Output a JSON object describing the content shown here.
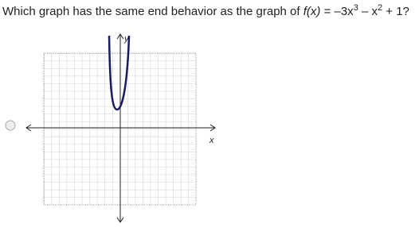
{
  "question": {
    "prefix": "Which graph has the same end behavior as the graph of ",
    "function": "f(x)",
    "equals": " = –3x",
    "exp1": "3",
    "mid": " – x",
    "exp2": "2",
    "end": " + 1?"
  },
  "graph": {
    "y_label": "y",
    "x_label": "x"
  }
}
